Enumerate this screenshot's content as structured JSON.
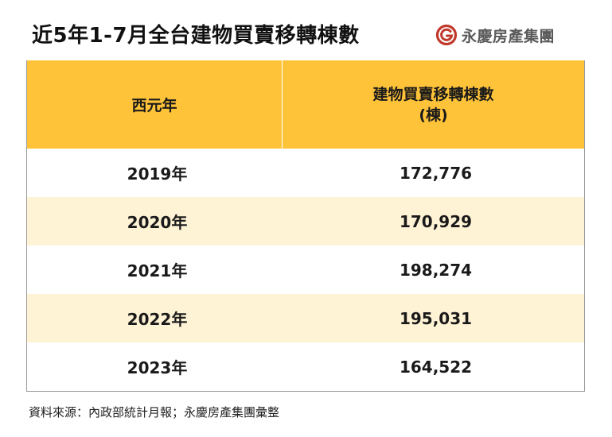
{
  "title": "近5年1-7月全台建物買賣移轉棟數",
  "logo": {
    "icon": "yungching-logo-icon",
    "text": "永慶房產集團",
    "color": "#c0392b"
  },
  "table": {
    "header": {
      "col1": "西元年",
      "col2_line1": "建物買賣移轉棟數",
      "col2_line2": "(棟)"
    },
    "header_color": "#ffc339",
    "stripe_color": "#fff3d6",
    "rows": [
      {
        "year": "2019年",
        "value": "172,776"
      },
      {
        "year": "2020年",
        "value": "170,929"
      },
      {
        "year": "2021年",
        "value": "198,274"
      },
      {
        "year": "2022年",
        "value": "195,031"
      },
      {
        "year": "2023年",
        "value": "164,522"
      }
    ]
  },
  "source": "資料來源：內政部統計月報；永慶房產集團彙整"
}
